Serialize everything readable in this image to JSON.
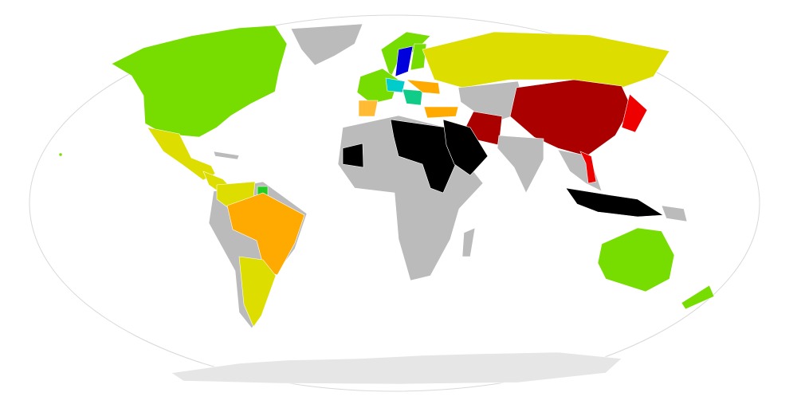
{
  "map": {
    "projection": "robinson",
    "colors": {
      "ocean": "#ffffff",
      "outline": "#d8d8d8",
      "no_data": "#bbbbbb",
      "antarctica": "#e6e6e6",
      "green": "#77dd00",
      "bright_green": "#22cc22",
      "yellow": "#dddd00",
      "orange": "#ffaa00",
      "light_orange": "#ffbb33",
      "cyan": "#00cccc",
      "teal": "#11cc88",
      "blue": "#0000dd",
      "red": "#ee0000",
      "dark_red": "#aa0000",
      "black": "#000000"
    }
  }
}
